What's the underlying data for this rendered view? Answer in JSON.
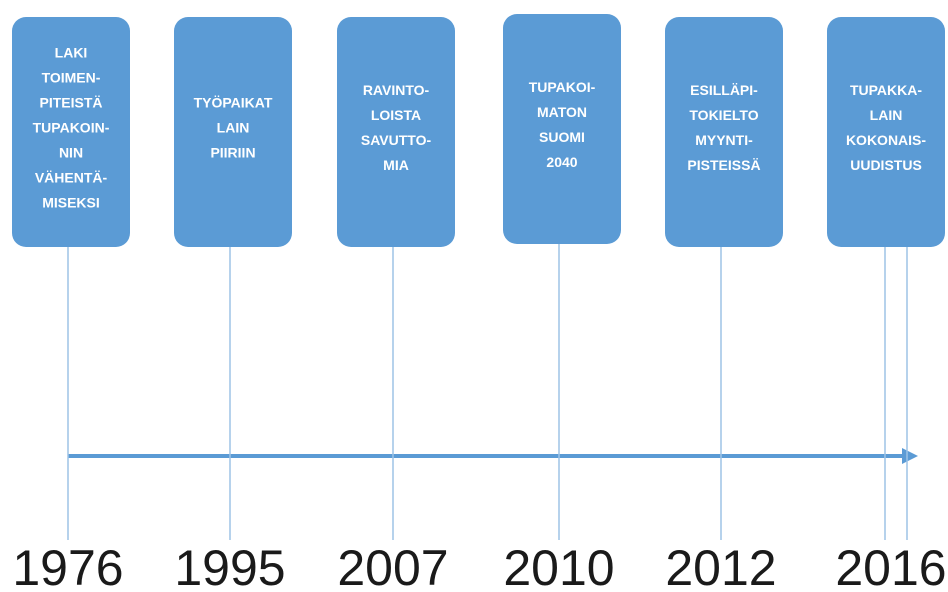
{
  "events": [
    {
      "label": [
        "LAKI",
        "TOIMEN-",
        "PITEISTÄ",
        "TUPAKOIN-",
        "NIN",
        "VÄHENTÄ-",
        "MISEKSI"
      ],
      "year": "1976"
    },
    {
      "label": [
        "TYÖPAIKAT",
        "LAIN",
        "PIIRIIN"
      ],
      "year": "1995"
    },
    {
      "label": [
        "RAVINTO-",
        "LOISTA",
        "SAVUTTO-",
        "MIA"
      ],
      "year": "2007"
    },
    {
      "label": [
        "TUPAKOI-",
        "MATON",
        "SUOMI",
        "2040"
      ],
      "year": "2010"
    },
    {
      "label": [
        "ESILLÄPI-",
        "TOKIELTO",
        "MYYNTI-",
        "PISTEISSÄ"
      ],
      "year": "2012"
    },
    {
      "label": [
        "TUPAKKA-",
        "LAIN",
        "KOKONAIS-",
        "UUDISTUS"
      ],
      "year": "2016"
    }
  ]
}
